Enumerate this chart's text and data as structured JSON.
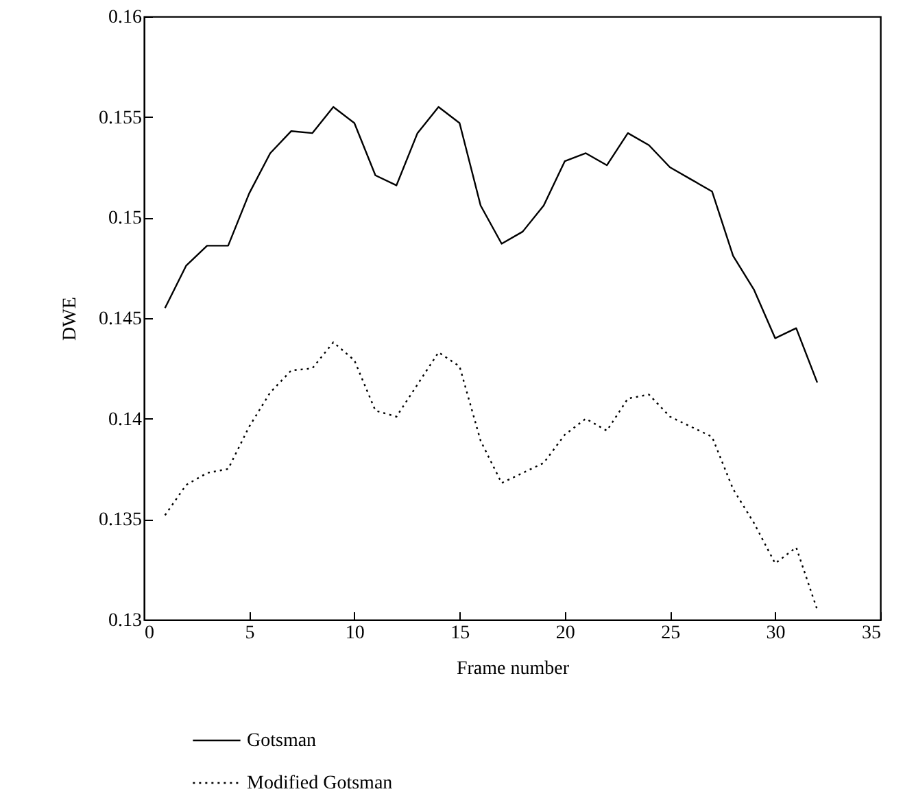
{
  "chart_data": {
    "type": "line",
    "xlabel": "Frame number",
    "ylabel": "DWE",
    "x": [
      1,
      2,
      3,
      4,
      5,
      6,
      7,
      8,
      9,
      10,
      11,
      12,
      13,
      14,
      15,
      16,
      17,
      18,
      19,
      20,
      21,
      22,
      23,
      24,
      25,
      26,
      27,
      28,
      29,
      30,
      31,
      32
    ],
    "series": [
      {
        "name": "Gotsman",
        "color": "#000000",
        "line_style": "solid",
        "values": [
          0.1455,
          0.1476,
          0.1486,
          0.1486,
          0.1512,
          0.1532,
          0.1543,
          0.1542,
          0.1555,
          0.1547,
          0.1521,
          0.1516,
          0.1542,
          0.1555,
          0.1547,
          0.1506,
          0.1487,
          0.1493,
          0.1506,
          0.1528,
          0.1532,
          0.1526,
          0.1542,
          0.1536,
          0.1525,
          0.1519,
          0.1513,
          0.1481,
          0.1464,
          0.144,
          0.1445,
          0.1418
        ]
      },
      {
        "name": "Modified Gotsman",
        "color": "#000000",
        "line_style": "dotted",
        "values": [
          0.1352,
          0.1367,
          0.1373,
          0.1375,
          0.1396,
          0.1413,
          0.1424,
          0.1425,
          0.1438,
          0.1429,
          0.1404,
          0.1401,
          0.1417,
          0.1433,
          0.1426,
          0.1389,
          0.1368,
          0.1373,
          0.1378,
          0.1392,
          0.14,
          0.1394,
          0.141,
          0.1412,
          0.1401,
          0.1396,
          0.1391,
          0.1365,
          0.1348,
          0.1328,
          0.1336,
          0.1305
        ]
      }
    ],
    "xlim": [
      0,
      35
    ],
    "xticks": [
      0,
      5,
      10,
      15,
      20,
      25,
      30,
      35
    ],
    "ylim": [
      0.13,
      0.16
    ],
    "yticks": [
      0.13,
      0.135,
      0.14,
      0.145,
      0.15,
      0.155,
      0.16
    ],
    "grid": false,
    "legend": "bottom left",
    "marker": "none"
  }
}
